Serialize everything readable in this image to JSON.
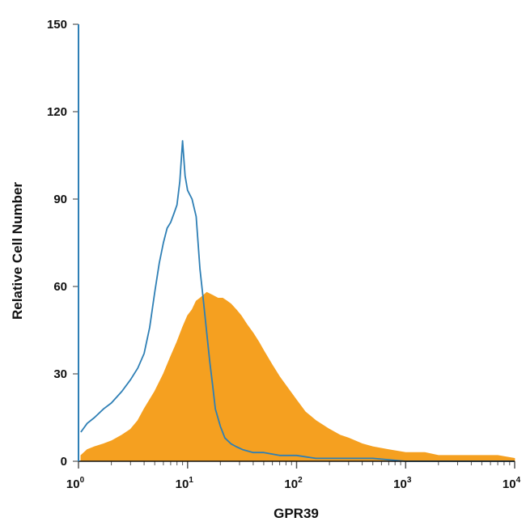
{
  "chart_data": {
    "type": "area",
    "title": "",
    "xlabel": "GPR39",
    "ylabel": "Relative Cell Number",
    "x_scale": "log",
    "xlim": [
      1,
      10000
    ],
    "ylim": [
      0,
      150
    ],
    "x_ticks": [
      {
        "base": "10",
        "exp": "0"
      },
      {
        "base": "10",
        "exp": "1"
      },
      {
        "base": "10",
        "exp": "2"
      },
      {
        "base": "10",
        "exp": "3"
      },
      {
        "base": "10",
        "exp": "4"
      }
    ],
    "y_ticks": [
      "0",
      "30",
      "60",
      "90",
      "120",
      "150"
    ],
    "grid": false,
    "legend": "none",
    "series": [
      {
        "style": "filled",
        "color": "#f5a020",
        "x": [
          1.05,
          1.2,
          1.4,
          1.7,
          2,
          2.5,
          3,
          3.5,
          4,
          5,
          6,
          7,
          8,
          9,
          10,
          11,
          12,
          13,
          14,
          15,
          17,
          19,
          21,
          23,
          25,
          28,
          31,
          35,
          40,
          45,
          50,
          60,
          70,
          80,
          100,
          120,
          150,
          200,
          250,
          300,
          400,
          500,
          700,
          1000,
          1500,
          2000,
          3000,
          5000,
          7000,
          10000
        ],
        "y": [
          2,
          4,
          5,
          6,
          7,
          9,
          11,
          14,
          18,
          24,
          30,
          36,
          41,
          46,
          50,
          52,
          55,
          56,
          57,
          58,
          57,
          56,
          56,
          55,
          54,
          52,
          50,
          47,
          44,
          41,
          38,
          33,
          29,
          26,
          21,
          17,
          14,
          11,
          9,
          8,
          6,
          5,
          4,
          3,
          3,
          2,
          2,
          2,
          2,
          1
        ]
      },
      {
        "style": "line",
        "color": "#2e7fb5",
        "x": [
          1.05,
          1.2,
          1.4,
          1.7,
          2,
          2.5,
          3,
          3.5,
          4,
          4.5,
          5,
          5.5,
          6,
          6.5,
          7,
          7.5,
          8,
          8.5,
          9,
          9.5,
          10,
          11,
          12,
          13,
          14,
          15,
          16,
          17,
          18,
          20,
          22,
          25,
          28,
          32,
          40,
          50,
          70,
          100,
          150,
          200,
          300,
          500,
          1000,
          2000,
          5000,
          10000
        ],
        "y": [
          10,
          13,
          15,
          18,
          20,
          24,
          28,
          32,
          37,
          46,
          58,
          68,
          75,
          80,
          82,
          85,
          88,
          96,
          110,
          98,
          93,
          90,
          84,
          66,
          55,
          44,
          34,
          26,
          18,
          12,
          8,
          6,
          5,
          4,
          3,
          3,
          2,
          2,
          1,
          1,
          1,
          1,
          0,
          0,
          0,
          0
        ]
      }
    ]
  }
}
